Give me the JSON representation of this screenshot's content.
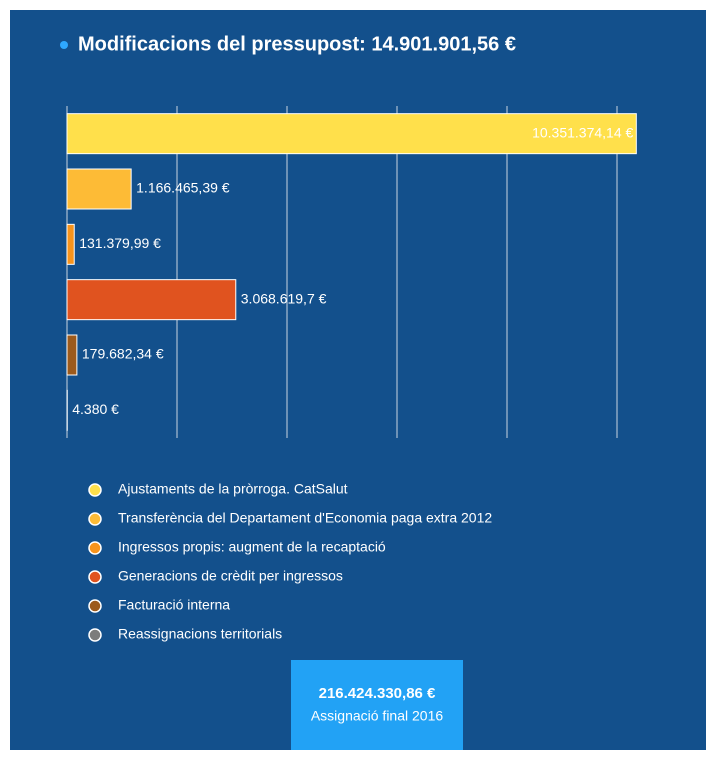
{
  "chart_data": {
    "type": "bar",
    "orientation": "horizontal",
    "title": "Modificacions del pressupost: 14.901.901,56 €",
    "categories": [
      "Ajustaments de la pròrroga. CatSalut",
      "Transferència del Departament d'Economia paga extra 2012",
      "Ingressos propis: augment de la recaptació",
      "Generacions de crèdit per ingressos",
      "Facturació interna",
      "Reassignacions territorials"
    ],
    "values": [
      10351374.14,
      1166465.39,
      131379.99,
      3068619.7,
      179682.34,
      4380
    ],
    "value_labels": [
      "10.351.374,14 €",
      "1.166.465,39 €",
      "131.379,99 €",
      "3.068.619,7 €",
      "179.682,34 €",
      "4.380 €"
    ],
    "colors": [
      "#ffe04b",
      "#fdbb36",
      "#f7941d",
      "#e0531f",
      "#9c5a1c",
      "#7c7c7c"
    ],
    "xlim": [
      0,
      10400000
    ],
    "xticks": [
      0,
      2000000,
      4000000,
      6000000,
      8000000,
      10000000
    ],
    "grid": true,
    "legend": "bottom"
  },
  "summary": {
    "value": "216.424.330,86 €",
    "label": "Assignació final 2016"
  }
}
